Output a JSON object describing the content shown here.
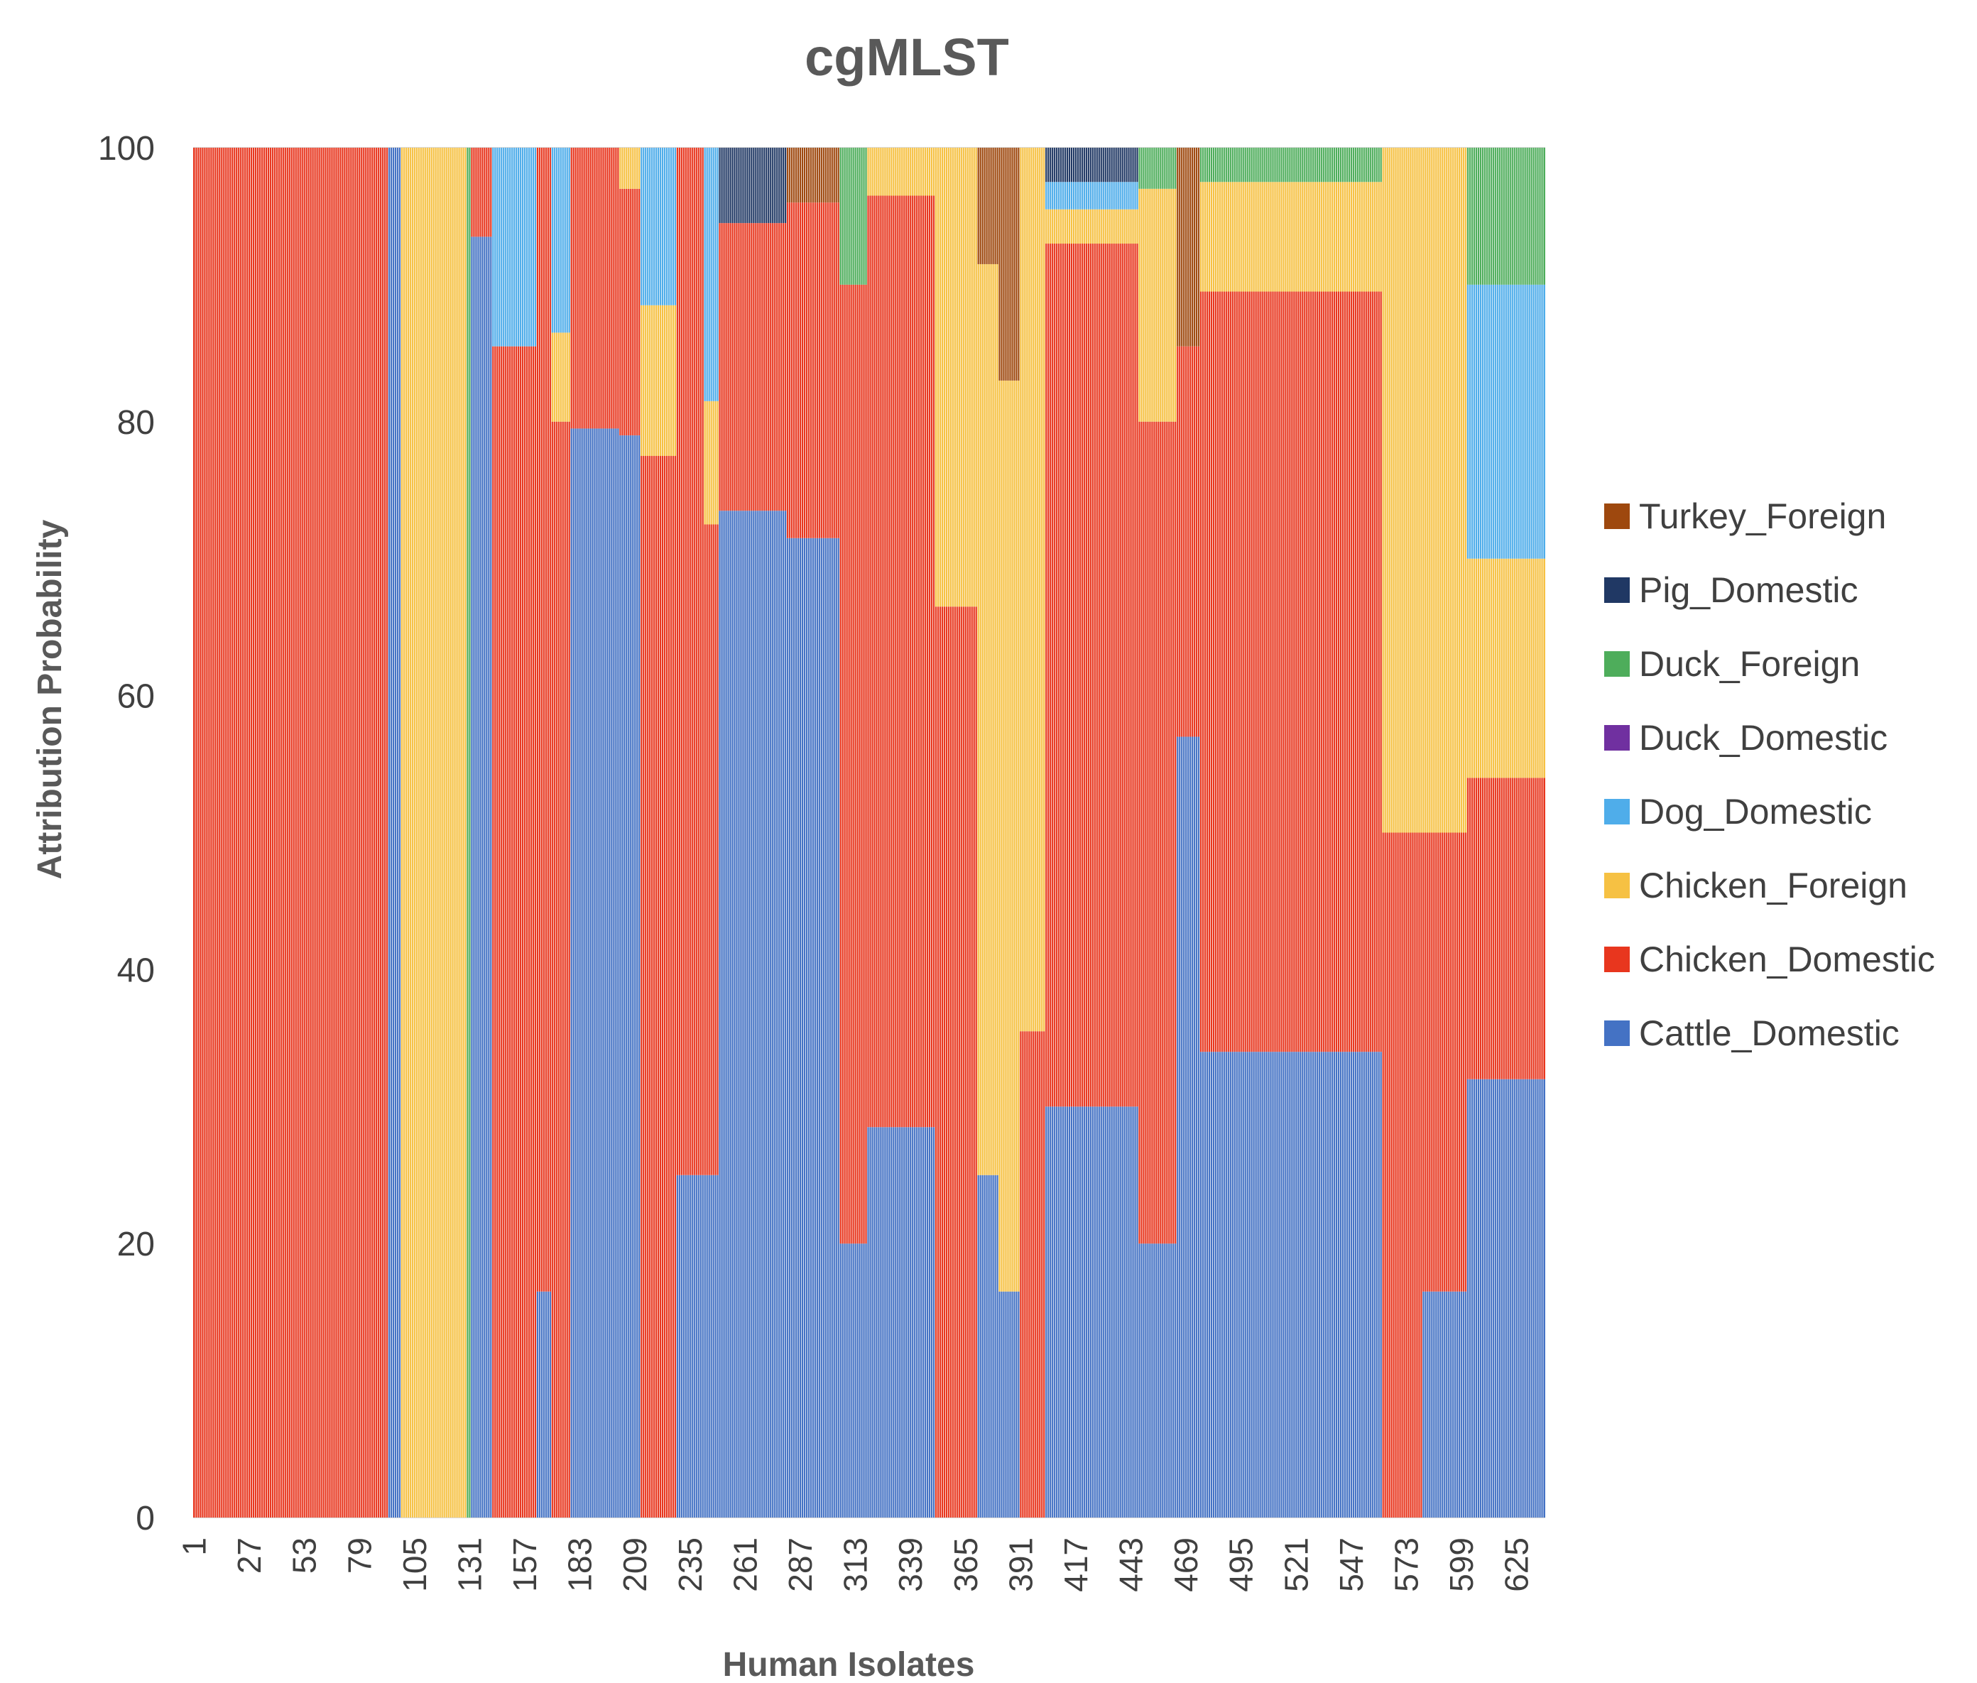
{
  "chart_data": {
    "type": "bar",
    "stacked": true,
    "normalized_percent": true,
    "title": "cgMLST",
    "xlabel": "Human Isolates",
    "ylabel": "Attribution Probability",
    "ylim": [
      0,
      100
    ],
    "yticks": [
      0,
      20,
      40,
      60,
      80,
      100
    ],
    "grid": true,
    "legend_position": "right",
    "n_isolates": 638,
    "xtick_labels": [
      "1",
      "27",
      "53",
      "79",
      "105",
      "131",
      "157",
      "183",
      "209",
      "235",
      "261",
      "287",
      "313",
      "339",
      "365",
      "391",
      "417",
      "443",
      "469",
      "495",
      "521",
      "547",
      "573",
      "599",
      "625"
    ],
    "series_order_bottom_to_top": [
      "Cattle_Domestic",
      "Chicken_Domestic",
      "Chicken_Foreign",
      "Dog_Domestic",
      "Duck_Domestic",
      "Duck_Foreign",
      "Pig_Domestic",
      "Turkey_Foreign"
    ],
    "legend_order": [
      "Turkey_Foreign",
      "Pig_Domestic",
      "Duck_Foreign",
      "Duck_Domestic",
      "Dog_Domestic",
      "Chicken_Foreign",
      "Chicken_Domestic",
      "Cattle_Domestic"
    ],
    "colors": {
      "Cattle_Domestic": "#4472C4",
      "Chicken_Domestic": "#E8361E",
      "Chicken_Foreign": "#F6C143",
      "Dog_Domestic": "#4FADEA",
      "Duck_Domestic": "#7030A0",
      "Duck_Foreign": "#4EAD5B",
      "Pig_Domestic": "#203864",
      "Turkey_Foreign": "#9E480E"
    },
    "groups": [
      {
        "start": 1,
        "end": 92,
        "values": {
          "Chicken_Domestic": 100
        }
      },
      {
        "start": 93,
        "end": 98,
        "values": {
          "Cattle_Domestic": 100
        }
      },
      {
        "start": 99,
        "end": 129,
        "values": {
          "Chicken_Foreign": 100
        }
      },
      {
        "start": 130,
        "end": 131,
        "values": {
          "Duck_Foreign": 100
        }
      },
      {
        "start": 132,
        "end": 141,
        "values": {
          "Cattle_Domestic": 93.5,
          "Chicken_Domestic": 6.5
        }
      },
      {
        "start": 142,
        "end": 162,
        "values": {
          "Chicken_Domestic": 85.5,
          "Dog_Domestic": 14.5
        }
      },
      {
        "start": 163,
        "end": 169,
        "values": {
          "Cattle_Domestic": 16.5,
          "Chicken_Domestic": 83.5
        }
      },
      {
        "start": 170,
        "end": 178,
        "values": {
          "Chicken_Domestic": 80,
          "Chicken_Foreign": 6.5,
          "Dog_Domestic": 13.5
        }
      },
      {
        "start": 179,
        "end": 201,
        "values": {
          "Cattle_Domestic": 79.5,
          "Chicken_Domestic": 20.5
        }
      },
      {
        "start": 202,
        "end": 211,
        "values": {
          "Cattle_Domestic": 79,
          "Chicken_Domestic": 18,
          "Chicken_Foreign": 3
        }
      },
      {
        "start": 212,
        "end": 228,
        "values": {
          "Chicken_Domestic": 77.5,
          "Chicken_Foreign": 11,
          "Dog_Domestic": 11.5
        }
      },
      {
        "start": 229,
        "end": 241,
        "values": {
          "Cattle_Domestic": 25,
          "Chicken_Domestic": 75
        }
      },
      {
        "start": 242,
        "end": 248,
        "values": {
          "Cattle_Domestic": 25,
          "Chicken_Domestic": 47.5,
          "Chicken_Foreign": 9,
          "Dog_Domestic": 18.5
        }
      },
      {
        "start": 249,
        "end": 280,
        "values": {
          "Cattle_Domestic": 73.5,
          "Chicken_Domestic": 21,
          "Pig_Domestic": 5.5
        }
      },
      {
        "start": 281,
        "end": 305,
        "values": {
          "Cattle_Domestic": 71.5,
          "Chicken_Domestic": 24.5,
          "Turkey_Foreign": 4
        }
      },
      {
        "start": 306,
        "end": 318,
        "values": {
          "Cattle_Domestic": 20,
          "Chicken_Domestic": 70,
          "Duck_Foreign": 10
        }
      },
      {
        "start": 319,
        "end": 350,
        "values": {
          "Cattle_Domestic": 28.5,
          "Chicken_Domestic": 68,
          "Chicken_Foreign": 3.5
        }
      },
      {
        "start": 351,
        "end": 370,
        "values": {
          "Chicken_Domestic": 66.5,
          "Chicken_Foreign": 33.5
        }
      },
      {
        "start": 371,
        "end": 380,
        "values": {
          "Cattle_Domestic": 25,
          "Chicken_Domestic": 0,
          "Chicken_Foreign": 66.5,
          "Turkey_Foreign": 8.5
        }
      },
      {
        "start": 381,
        "end": 390,
        "values": {
          "Cattle_Domestic": 16.5,
          "Chicken_Foreign": 66.5,
          "Turkey_Foreign": 17
        }
      },
      {
        "start": 391,
        "end": 402,
        "values": {
          "Chicken_Domestic": 35.5,
          "Chicken_Foreign": 64.5
        }
      },
      {
        "start": 403,
        "end": 446,
        "values": {
          "Cattle_Domestic": 30,
          "Chicken_Domestic": 63,
          "Chicken_Foreign": 2.5,
          "Dog_Domestic": 2,
          "Pig_Domestic": 2.5
        }
      },
      {
        "start": 447,
        "end": 464,
        "values": {
          "Cattle_Domestic": 20,
          "Chicken_Domestic": 60,
          "Chicken_Foreign": 17,
          "Duck_Foreign": 3
        }
      },
      {
        "start": 465,
        "end": 475,
        "values": {
          "Cattle_Domestic": 57,
          "Chicken_Domestic": 28.5,
          "Turkey_Foreign": 14.5
        }
      },
      {
        "start": 476,
        "end": 561,
        "values": {
          "Cattle_Domestic": 34,
          "Chicken_Domestic": 55.5,
          "Chicken_Foreign": 8,
          "Duck_Foreign": 2.5
        }
      },
      {
        "start": 562,
        "end": 580,
        "values": {
          "Chicken_Domestic": 50,
          "Chicken_Foreign": 50
        }
      },
      {
        "start": 581,
        "end": 601,
        "values": {
          "Cattle_Domestic": 16.5,
          "Chicken_Domestic": 33.5,
          "Chicken_Foreign": 50
        }
      },
      {
        "start": 602,
        "end": 638,
        "values": {
          "Cattle_Domestic": 32,
          "Chicken_Domestic": 22,
          "Chicken_Foreign": 16,
          "Dog_Domestic": 20,
          "Duck_Foreign": 10
        }
      }
    ]
  }
}
